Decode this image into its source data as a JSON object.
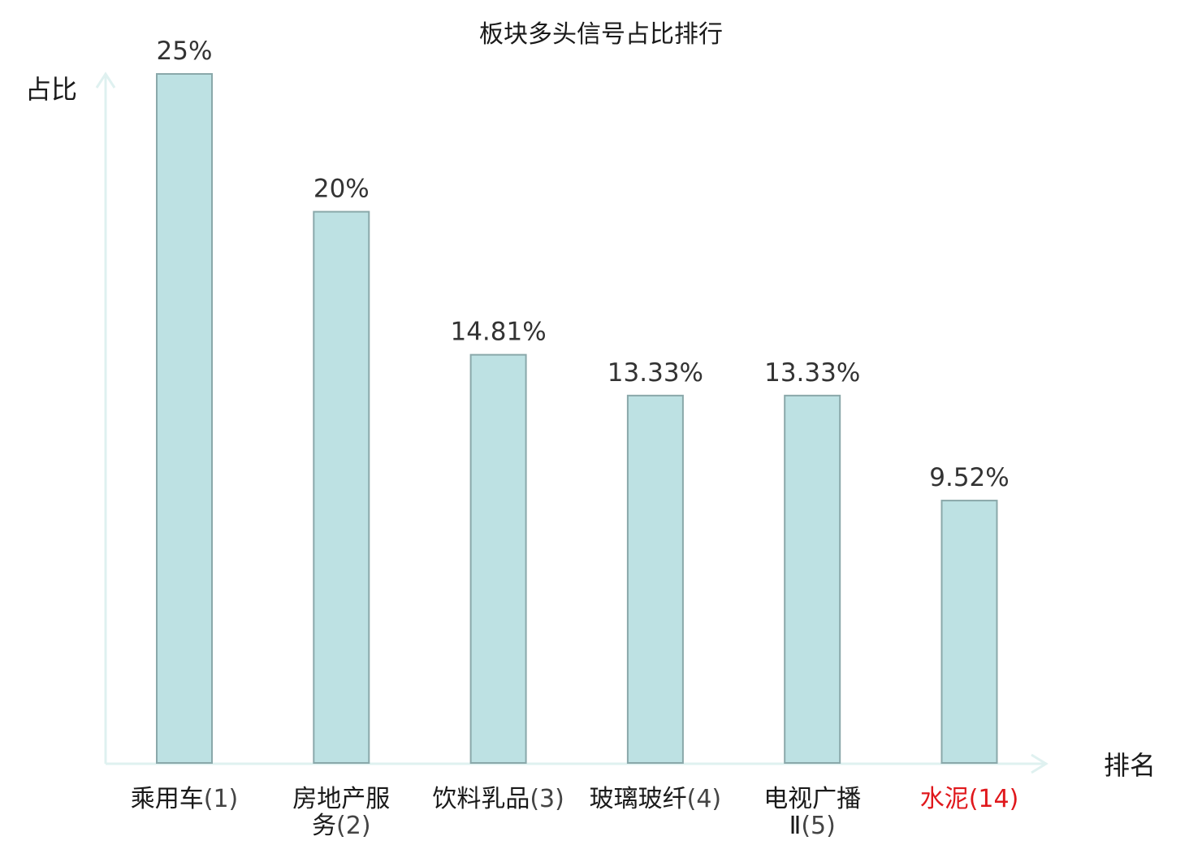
{
  "chart_data": {
    "type": "bar",
    "title": "板块多头信号占比排行",
    "ylabel": "占比",
    "xlabel": "排名",
    "ylim": [
      0,
      25
    ],
    "categories": [
      {
        "lines": [
          [
            "乘用车",
            "(1)"
          ]
        ],
        "highlight": false
      },
      {
        "lines": [
          [
            "房地产服",
            ""
          ],
          [
            "务",
            "(2)"
          ]
        ],
        "highlight": false
      },
      {
        "lines": [
          [
            "饮料乳品",
            "(3)"
          ]
        ],
        "highlight": false
      },
      {
        "lines": [
          [
            "玻璃玻纤",
            "(4)"
          ]
        ],
        "highlight": false
      },
      {
        "lines": [
          [
            "电视广播",
            ""
          ],
          [
            "Ⅱ",
            "(5)"
          ]
        ],
        "highlight": false
      },
      {
        "lines": [
          [
            "水泥",
            "(14)"
          ]
        ],
        "highlight": true
      }
    ],
    "values": [
      25,
      20,
      14.81,
      13.33,
      13.33,
      9.52
    ],
    "value_labels": [
      "25%",
      "20%",
      "14.81%",
      "13.33%",
      "13.33%",
      "9.52%"
    ]
  },
  "colors": {
    "bar_fill": "#bde1e3",
    "bar_stroke": "#8aa8aa",
    "axis": "#dff1f0",
    "highlight": "#e0181c",
    "text": "#1a1a1a"
  }
}
